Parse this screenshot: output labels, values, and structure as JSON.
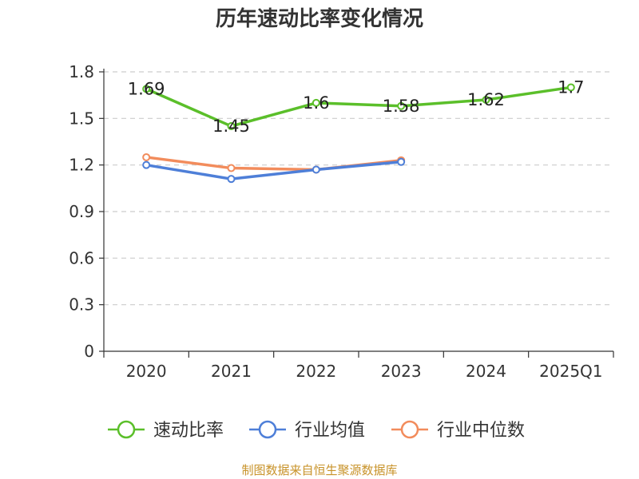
{
  "chart_data": {
    "type": "line",
    "title": "历年速动比率变化情况",
    "categories": [
      "2020",
      "2021",
      "2022",
      "2023",
      "2024",
      "2025Q1"
    ],
    "y_ticks": [
      "0",
      "0.3",
      "0.6",
      "0.9",
      "1.2",
      "1.5",
      "1.8"
    ],
    "ylim": [
      0,
      1.8
    ],
    "grid": true,
    "legend_position": "bottom",
    "series": [
      {
        "name": "速动比率",
        "color": "#5bbf2a",
        "values": [
          1.69,
          1.45,
          1.6,
          1.58,
          1.62,
          1.7
        ],
        "labels": [
          "1.69",
          "1.45",
          "1.6",
          "1.58",
          "1.62",
          "1.7"
        ]
      },
      {
        "name": "行业均值",
        "color": "#4e7fd8",
        "values": [
          1.2,
          1.11,
          1.17,
          1.22,
          null,
          null
        ]
      },
      {
        "name": "行业中位数",
        "color": "#f28c5c",
        "values": [
          1.25,
          1.18,
          1.17,
          1.23,
          null,
          null
        ]
      }
    ],
    "source": "制图数据来自恒生聚源数据库"
  }
}
